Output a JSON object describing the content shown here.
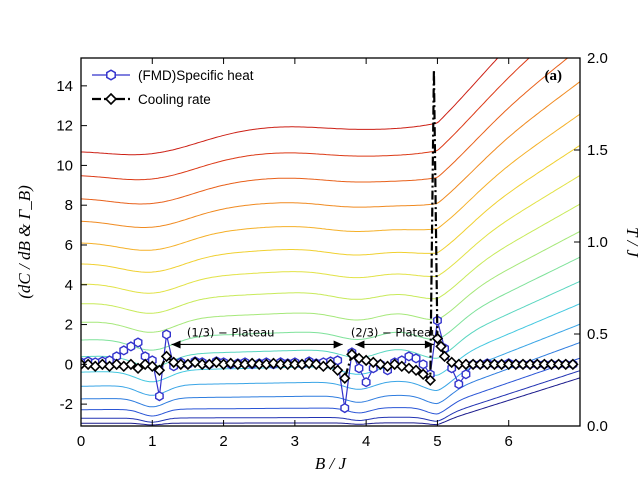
{
  "chart_data": {
    "type": "line",
    "panel_label": "(a)",
    "xlabel": "B / J",
    "ylabel": "(dC / dB & Γ_B)",
    "y2label": "T / J",
    "xlim": [
      0,
      7
    ],
    "ylim": [
      -3.1,
      15.4
    ],
    "y2lim": [
      0,
      2.0
    ],
    "xticks": [
      "0",
      "1",
      "2",
      "3",
      "4",
      "5",
      "6"
    ],
    "yticks": [
      "-2",
      "0",
      "2",
      "4",
      "6",
      "8",
      "10",
      "12",
      "14"
    ],
    "y2ticks": [
      "0.0",
      "0.5",
      "1.0",
      "1.5",
      "2.0"
    ],
    "legend_position": "top-left",
    "series": [
      {
        "name": "(FMD)Specific heat",
        "color": "#3333cc",
        "marker": "hexagon-open",
        "x": [
          0.0,
          0.1,
          0.2,
          0.3,
          0.4,
          0.5,
          0.6,
          0.7,
          0.8,
          0.9,
          1.0,
          1.1,
          1.2,
          1.3,
          1.4,
          1.5,
          1.6,
          1.7,
          1.8,
          1.9,
          2.0,
          2.1,
          2.2,
          2.3,
          2.4,
          2.5,
          2.6,
          2.7,
          2.8,
          2.9,
          3.0,
          3.1,
          3.2,
          3.3,
          3.4,
          3.5,
          3.6,
          3.7,
          3.8,
          3.9,
          4.0,
          4.1,
          4.2,
          4.3,
          4.4,
          4.5,
          4.6,
          4.7,
          4.8,
          4.9,
          5.0,
          5.1,
          5.2,
          5.3,
          5.4,
          5.5,
          5.6,
          5.7,
          5.8,
          5.9,
          6.0,
          6.1,
          6.2,
          6.3,
          6.4,
          6.5,
          6.6,
          6.7,
          6.8,
          6.9
        ],
        "values": [
          0.1,
          0.15,
          0.1,
          0.15,
          0.2,
          0.4,
          0.7,
          0.9,
          1.1,
          0.4,
          0.2,
          -1.6,
          1.5,
          -0.1,
          0.1,
          0.0,
          0.15,
          0.1,
          0.0,
          0.15,
          0.1,
          0.0,
          0.05,
          0.1,
          0.0,
          0.05,
          0.1,
          0.0,
          0.1,
          0.05,
          0.1,
          0.0,
          0.15,
          0.05,
          0.1,
          0.15,
          0.2,
          -2.2,
          0.6,
          -0.2,
          -0.9,
          -0.2,
          0.0,
          -0.3,
          0.1,
          0.2,
          0.4,
          0.3,
          0.0,
          -0.5,
          2.2,
          0.8,
          -0.2,
          -1.0,
          -0.5,
          0.0,
          0.0,
          0.05,
          0.0,
          0.0,
          0.05,
          0.0,
          0.0,
          0.0,
          0.0,
          0.0,
          0.0,
          0.0,
          0.0,
          0.0
        ]
      },
      {
        "name": "Cooling rate",
        "color": "#000000",
        "marker": "diamond-open",
        "x": [
          0.0,
          0.1,
          0.2,
          0.3,
          0.4,
          0.5,
          0.6,
          0.7,
          0.8,
          0.9,
          1.0,
          1.1,
          1.2,
          1.3,
          1.4,
          1.5,
          1.6,
          1.7,
          1.8,
          1.9,
          2.0,
          2.1,
          2.2,
          2.3,
          2.4,
          2.5,
          2.6,
          2.7,
          2.8,
          2.9,
          3.0,
          3.1,
          3.2,
          3.3,
          3.4,
          3.5,
          3.6,
          3.7,
          3.8,
          3.9,
          4.0,
          4.1,
          4.2,
          4.3,
          4.4,
          4.5,
          4.6,
          4.7,
          4.8,
          4.9,
          4.95,
          5.0,
          5.05,
          5.1,
          5.2,
          5.3,
          5.4,
          5.5,
          5.6,
          5.7,
          5.8,
          5.9,
          6.0,
          6.1,
          6.2,
          6.3,
          6.4,
          6.5,
          6.6,
          6.7,
          6.8,
          6.9
        ],
        "values": [
          0.0,
          0.0,
          -0.1,
          0.0,
          -0.1,
          0.0,
          -0.1,
          0.0,
          -0.2,
          0.0,
          -0.1,
          -0.3,
          0.4,
          0.1,
          0.0,
          0.0,
          0.1,
          0.0,
          0.0,
          0.1,
          0.0,
          0.05,
          0.0,
          0.0,
          0.05,
          0.0,
          0.0,
          0.05,
          0.0,
          0.0,
          0.0,
          0.0,
          0.05,
          0.0,
          -0.1,
          0.0,
          -0.3,
          -0.7,
          0.5,
          0.3,
          0.2,
          0.1,
          0.0,
          -0.1,
          0.0,
          -0.1,
          -0.2,
          -0.3,
          -0.5,
          -0.8,
          14.8,
          1.3,
          0.9,
          0.4,
          0.1,
          0.0,
          0.0,
          0.0,
          0.0,
          0.0,
          0.0,
          0.0,
          0.0,
          0.0,
          0.0,
          0.0,
          0.0,
          0.0,
          0.0,
          0.0,
          0.0,
          0.0
        ]
      }
    ],
    "annotations": [
      {
        "text": "(1/3) − Plateau",
        "x_from": 1.27,
        "x_to": 3.67,
        "y": 1.0,
        "label_x": 2.1,
        "label_y": 1.6
      },
      {
        "text": "(2/3) − Plateau",
        "x_from": 3.85,
        "x_to": 4.95,
        "y": 1.0,
        "label_x": 4.4,
        "label_y": 1.6
      }
    ],
    "isotherm_colors": [
      "#1a1a8c",
      "#2233b3",
      "#2a55d6",
      "#2f7ddf",
      "#3aa5e6",
      "#44c8e0",
      "#5ad6c0",
      "#7ee29a",
      "#a6e87a",
      "#c8ea5a",
      "#e2e246",
      "#f0d030",
      "#f5b028",
      "#f08a20",
      "#e8601a",
      "#dc3a16",
      "#cc1f14"
    ]
  }
}
